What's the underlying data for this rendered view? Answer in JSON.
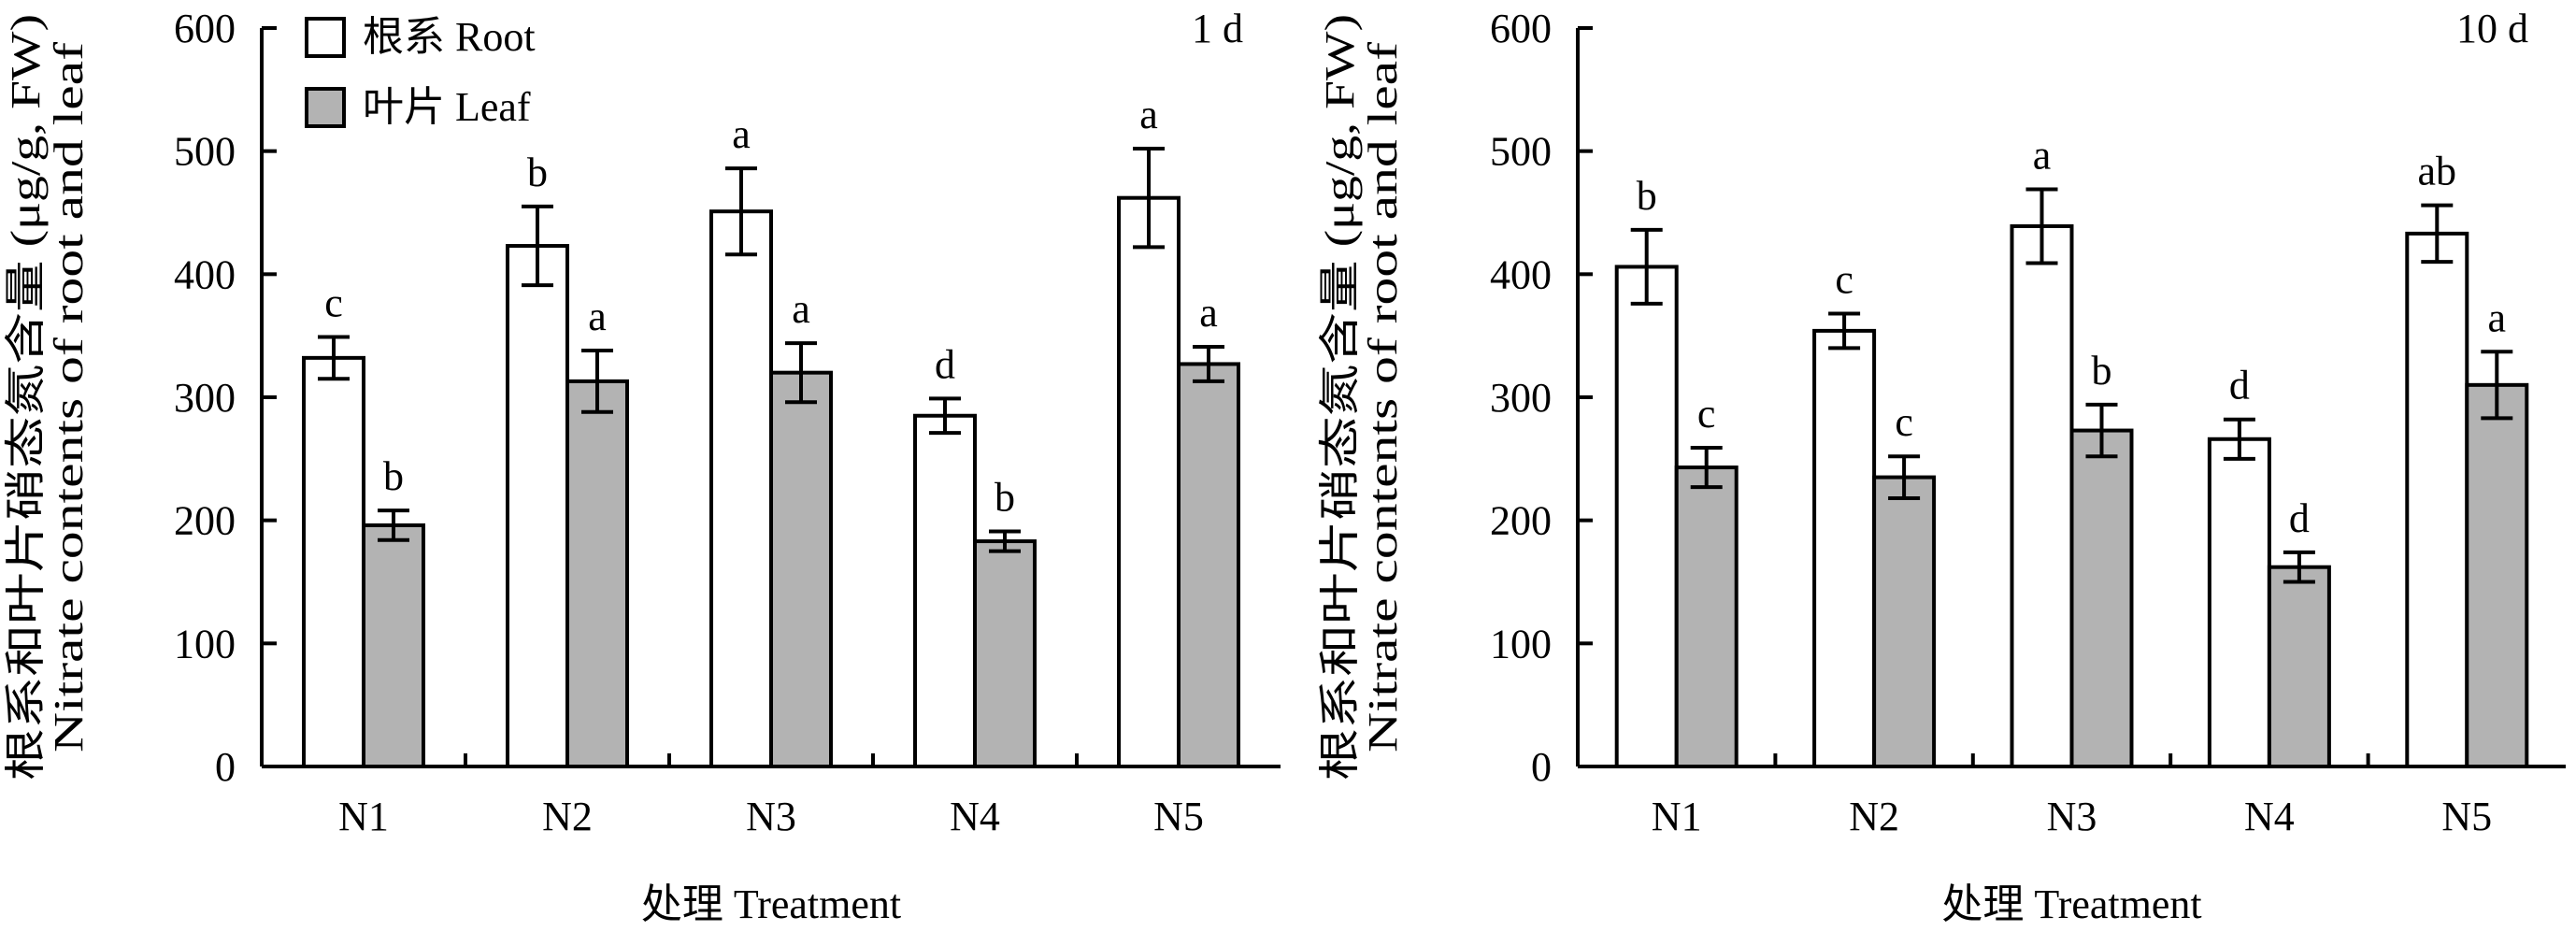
{
  "legend": {
    "entries": [
      {
        "label": "根系 Root",
        "fill": "#ffffff"
      },
      {
        "label": "叶片 Leaf",
        "fill": "#b3b3b3"
      }
    ]
  },
  "chart_data": [
    {
      "type": "bar",
      "panel_label": "1 d",
      "categories": [
        "N1",
        "N2",
        "N3",
        "N4",
        "N5"
      ],
      "xlabel": "处理 Treatment",
      "ylabel_cn": "根系和叶片硝态氮含量 (μg/g, FW)",
      "ylabel_en": "Nitrate contents of root and leaf",
      "ylim": [
        0,
        600
      ],
      "yticks": [
        0,
        100,
        200,
        300,
        400,
        500,
        600
      ],
      "series": [
        {
          "name": "根系 Root",
          "color": "#ffffff",
          "values": [
            332,
            423,
            451,
            285,
            462
          ],
          "errors": [
            17,
            32,
            35,
            14,
            40
          ],
          "letters": [
            "c",
            "b",
            "a",
            "d",
            "a"
          ]
        },
        {
          "name": "叶片 Leaf",
          "color": "#b3b3b3",
          "values": [
            196,
            313,
            320,
            183,
            327
          ],
          "errors": [
            12,
            25,
            24,
            8,
            14
          ],
          "letters": [
            "b",
            "a",
            "a",
            "b",
            "a"
          ]
        }
      ]
    },
    {
      "type": "bar",
      "panel_label": "10 d",
      "categories": [
        "N1",
        "N2",
        "N3",
        "N4",
        "N5"
      ],
      "xlabel": "处理 Treatment",
      "ylabel_cn": "根系和叶片硝态氮含量 (μg/g, FW)",
      "ylabel_en": "Nitrate contents of root and leaf",
      "ylim": [
        0,
        600
      ],
      "yticks": [
        0,
        100,
        200,
        300,
        400,
        500,
        600
      ],
      "series": [
        {
          "name": "根系 Root",
          "color": "#ffffff",
          "values": [
            406,
            354,
            439,
            266,
            433
          ],
          "errors": [
            30,
            14,
            30,
            16,
            23
          ],
          "letters": [
            "b",
            "c",
            "a",
            "d",
            "ab"
          ]
        },
        {
          "name": "叶片 Leaf",
          "color": "#b3b3b3",
          "values": [
            243,
            235,
            273,
            162,
            310
          ],
          "errors": [
            16,
            17,
            21,
            12,
            27
          ],
          "letters": [
            "c",
            "c",
            "b",
            "d",
            "a"
          ]
        }
      ]
    }
  ]
}
